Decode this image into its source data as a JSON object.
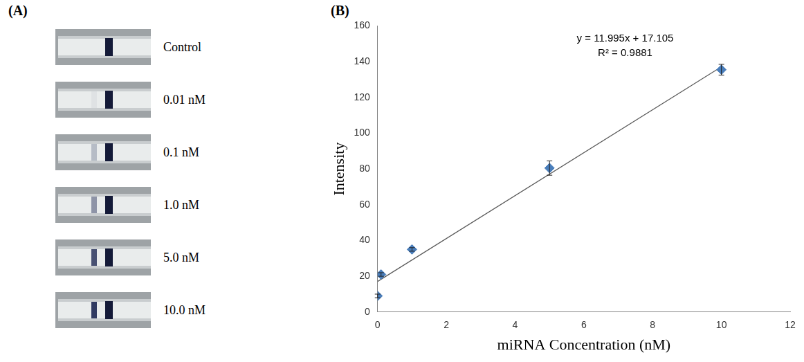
{
  "panel_letters": [
    "(A)",
    "(B)"
  ],
  "strips": {
    "labels": [
      "Control",
      "0.01 nM",
      "0.1 nM",
      "1.0 nM",
      "5.0 nM",
      "10.0 nM"
    ]
  },
  "chart_data": {
    "type": "scatter",
    "x_label": "miRNA Concentration (nM)",
    "y_label": "Intensity",
    "x": [
      0,
      0.1,
      1,
      5,
      10
    ],
    "values": [
      9,
      21,
      35,
      80.5,
      135.5
    ],
    "errors": [
      1,
      1,
      1,
      4,
      3
    ],
    "color": "#4a7ebb",
    "marker": "diamond",
    "fit_line": {
      "x": [
        0,
        10
      ],
      "values": [
        17.1,
        137.1
      ],
      "color": "#595959"
    },
    "annotations": [
      "y = 11.995x + 17.105",
      "R² = 0.9881"
    ],
    "xlim": [
      0,
      12
    ],
    "xticks": [
      0,
      2,
      4,
      6,
      8,
      10,
      12
    ],
    "ylim": [
      0,
      160
    ],
    "yticks": [
      0,
      20,
      40,
      60,
      80,
      100,
      120,
      140,
      160
    ],
    "grid": false
  }
}
